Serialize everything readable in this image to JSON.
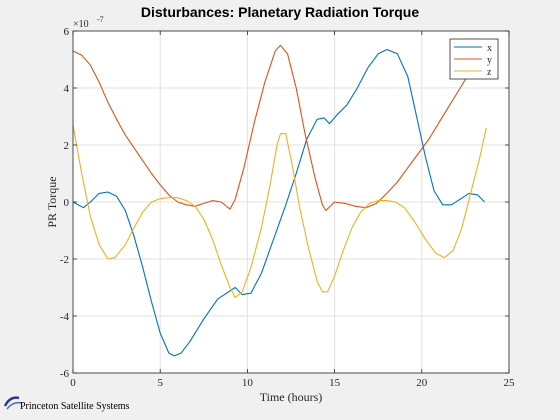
{
  "figure": {
    "title": "Disturbances: Planetary Radiation Torque",
    "footer_text": "Princeton Satellite Systems"
  },
  "chart_data": {
    "type": "line",
    "title": "Disturbances: Planetary Radiation Torque",
    "xlabel": "Time (hours)",
    "ylabel": "PR Torque",
    "y_exponent_label": "×10",
    "y_exponent_power": "-7",
    "xlim": [
      0,
      25
    ],
    "ylim": [
      -6,
      6
    ],
    "xticks": [
      "0",
      "5",
      "10",
      "15",
      "20",
      "25"
    ],
    "yticks": [
      "-6",
      "-4",
      "-2",
      "0",
      "2",
      "4",
      "6"
    ],
    "grid": true,
    "legend_position": "top-right",
    "series": [
      {
        "name": "x",
        "color": "#0072BD",
        "points": [
          [
            0,
            0
          ],
          [
            0.6,
            -0.2
          ],
          [
            1,
            0
          ],
          [
            1.5,
            0.3
          ],
          [
            2,
            0.35
          ],
          [
            2.5,
            0.2
          ],
          [
            3,
            -0.3
          ],
          [
            3.5,
            -1.2
          ],
          [
            4,
            -2.3
          ],
          [
            4.5,
            -3.5
          ],
          [
            5,
            -4.6
          ],
          [
            5.5,
            -5.3
          ],
          [
            5.8,
            -5.4
          ],
          [
            6.2,
            -5.3
          ],
          [
            6.7,
            -4.9
          ],
          [
            7.5,
            -4.1
          ],
          [
            8.3,
            -3.4
          ],
          [
            9.3,
            -3.0
          ],
          [
            9.7,
            -3.25
          ],
          [
            10.2,
            -3.2
          ],
          [
            10.8,
            -2.5
          ],
          [
            11.5,
            -1.3
          ],
          [
            12.2,
            -0.1
          ],
          [
            12.8,
            1.0
          ],
          [
            13.4,
            2.2
          ],
          [
            14,
            2.9
          ],
          [
            14.4,
            2.95
          ],
          [
            14.7,
            2.75
          ],
          [
            15.2,
            3.1
          ],
          [
            15.7,
            3.4
          ],
          [
            16.3,
            4.0
          ],
          [
            16.9,
            4.7
          ],
          [
            17.5,
            5.2
          ],
          [
            18,
            5.35
          ],
          [
            18.6,
            5.2
          ],
          [
            19.2,
            4.4
          ],
          [
            19.7,
            3.0
          ],
          [
            20.2,
            1.6
          ],
          [
            20.7,
            0.4
          ],
          [
            21.2,
            -0.1
          ],
          [
            21.7,
            -0.1
          ],
          [
            22.2,
            0.1
          ],
          [
            22.7,
            0.3
          ],
          [
            23.2,
            0.25
          ],
          [
            23.6,
            0
          ]
        ]
      },
      {
        "name": "y",
        "color": "#D95319",
        "points": [
          [
            0,
            5.3
          ],
          [
            0.5,
            5.15
          ],
          [
            1,
            4.8
          ],
          [
            1.5,
            4.2
          ],
          [
            2,
            3.5
          ],
          [
            2.5,
            2.9
          ],
          [
            3,
            2.35
          ],
          [
            3.5,
            1.9
          ],
          [
            4,
            1.45
          ],
          [
            4.5,
            1.0
          ],
          [
            5,
            0.6
          ],
          [
            5.5,
            0.25
          ],
          [
            6,
            0.0
          ],
          [
            6.5,
            -0.1
          ],
          [
            7,
            -0.15
          ],
          [
            7.5,
            -0.05
          ],
          [
            8,
            0.05
          ],
          [
            8.5,
            0.0
          ],
          [
            9,
            -0.25
          ],
          [
            9.3,
            0.1
          ],
          [
            9.8,
            1.2
          ],
          [
            10.4,
            2.8
          ],
          [
            11,
            4.2
          ],
          [
            11.6,
            5.3
          ],
          [
            11.9,
            5.5
          ],
          [
            12.3,
            5.2
          ],
          [
            12.8,
            4.0
          ],
          [
            13.3,
            2.4
          ],
          [
            13.9,
            0.8
          ],
          [
            14.3,
            -0.1
          ],
          [
            14.5,
            -0.3
          ],
          [
            15,
            0.0
          ],
          [
            15.6,
            -0.05
          ],
          [
            16.2,
            -0.15
          ],
          [
            16.8,
            -0.2
          ],
          [
            17.4,
            -0.05
          ],
          [
            18,
            0.3
          ],
          [
            18.6,
            0.7
          ],
          [
            19.2,
            1.2
          ],
          [
            19.8,
            1.7
          ],
          [
            20.4,
            2.2
          ],
          [
            21,
            2.8
          ],
          [
            21.6,
            3.4
          ],
          [
            22.2,
            4.0
          ],
          [
            22.6,
            4.4
          ],
          [
            22.9,
            4.7
          ]
        ]
      },
      {
        "name": "z",
        "color": "#EDB120",
        "points": [
          [
            0,
            2.7
          ],
          [
            0.5,
            1.0
          ],
          [
            1,
            -0.5
          ],
          [
            1.5,
            -1.5
          ],
          [
            2,
            -2.0
          ],
          [
            2.4,
            -1.95
          ],
          [
            3,
            -1.5
          ],
          [
            3.5,
            -0.9
          ],
          [
            4,
            -0.35
          ],
          [
            4.5,
            0.0
          ],
          [
            5,
            0.12
          ],
          [
            5.5,
            0.15
          ],
          [
            6,
            0.15
          ],
          [
            6.5,
            0.05
          ],
          [
            7,
            -0.15
          ],
          [
            7.5,
            -0.6
          ],
          [
            8,
            -1.3
          ],
          [
            8.5,
            -2.2
          ],
          [
            9,
            -3.0
          ],
          [
            9.3,
            -3.35
          ],
          [
            9.7,
            -3.15
          ],
          [
            10.2,
            -2.3
          ],
          [
            10.8,
            -0.9
          ],
          [
            11.3,
            0.6
          ],
          [
            11.7,
            2.0
          ],
          [
            11.9,
            2.4
          ],
          [
            12.2,
            2.4
          ],
          [
            12.6,
            1.2
          ],
          [
            13,
            -0.2
          ],
          [
            13.5,
            -1.6
          ],
          [
            14,
            -2.8
          ],
          [
            14.3,
            -3.15
          ],
          [
            14.6,
            -3.15
          ],
          [
            15,
            -2.6
          ],
          [
            15.5,
            -1.7
          ],
          [
            16,
            -0.9
          ],
          [
            16.5,
            -0.35
          ],
          [
            17,
            -0.05
          ],
          [
            17.5,
            0.05
          ],
          [
            18,
            0.05
          ],
          [
            18.5,
            0.0
          ],
          [
            19,
            -0.2
          ],
          [
            19.6,
            -0.7
          ],
          [
            20.2,
            -1.3
          ],
          [
            20.8,
            -1.8
          ],
          [
            21.3,
            -1.95
          ],
          [
            21.8,
            -1.7
          ],
          [
            22.3,
            -0.9
          ],
          [
            22.8,
            0.3
          ],
          [
            23.3,
            1.5
          ],
          [
            23.7,
            2.6
          ]
        ]
      }
    ]
  }
}
